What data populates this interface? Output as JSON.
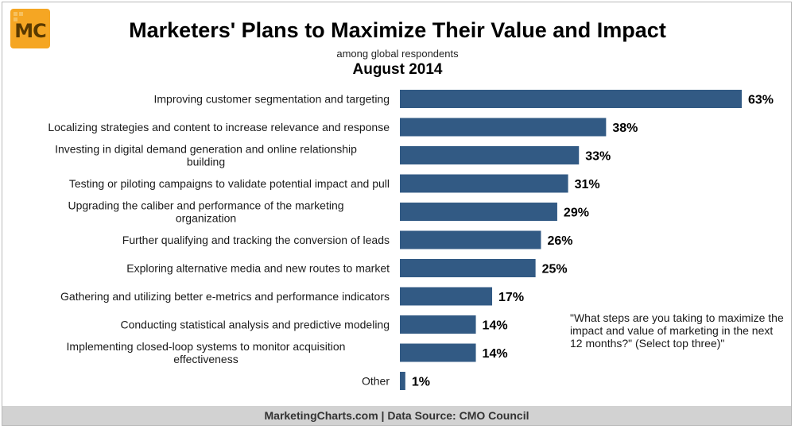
{
  "header": {
    "logo_text": "MC",
    "title": "Marketers' Plans to Maximize Their Value and Impact",
    "subtitle": "among global respondents",
    "date": "August 2014"
  },
  "colors": {
    "bar": "#325a84",
    "footer_bg": "#d2d2d2",
    "logo": "#f5a623"
  },
  "note": "\"What steps are you taking to maximize the impact and value of marketing in the next 12 months?\" (Select top three)\"",
  "footer": {
    "text": "MarketingCharts.com | Data Source: CMO Council"
  },
  "chart_data": {
    "type": "bar",
    "orientation": "horizontal",
    "value_suffix": "%",
    "categories": [
      [
        "Improving customer segmentation and targeting"
      ],
      [
        "Localizing strategies and content to increase relevance and response"
      ],
      [
        "Investing in digital demand generation and online relationship",
        "building"
      ],
      [
        "Testing or piloting campaigns to validate potential impact and pull"
      ],
      [
        "Upgrading the caliber and performance of the marketing",
        "organization"
      ],
      [
        "Further qualifying and tracking the conversion of leads"
      ],
      [
        "Exploring alternative media and new routes to market"
      ],
      [
        "Gathering and utilizing better e-metrics and performance indicators"
      ],
      [
        "Conducting statistical analysis and predictive modeling"
      ],
      [
        "Implementing closed-loop systems to monitor acquisition",
        "effectiveness"
      ],
      [
        "Other"
      ]
    ],
    "values": [
      63,
      38,
      33,
      31,
      29,
      26,
      25,
      17,
      14,
      14,
      1
    ],
    "xlim": [
      0,
      63
    ],
    "grid": false,
    "legend": "none"
  }
}
